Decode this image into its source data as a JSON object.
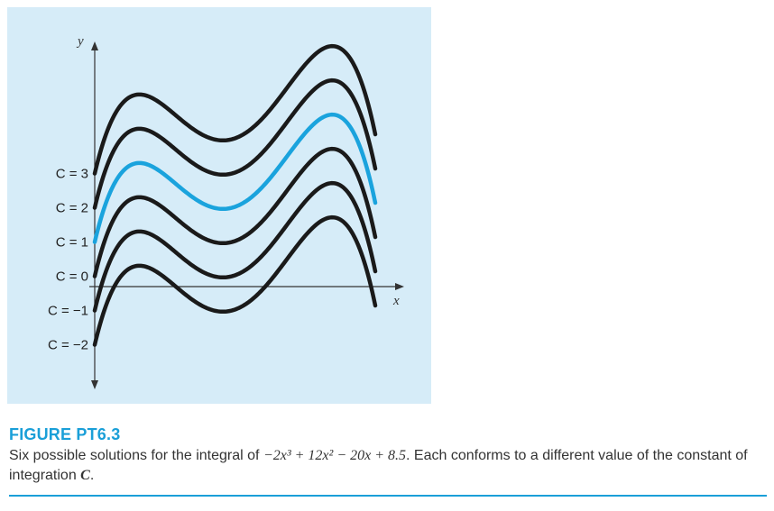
{
  "figure": {
    "title": "FIGURE PT6.3",
    "caption_pre": "Six possible solutions for the integral of ",
    "caption_expr": "−2x³ + 12x² − 20x + 8.5",
    "caption_mid": ". Each conforms to a different value of the constant of integration ",
    "caption_var": "C",
    "caption_end": "."
  },
  "chart_data": {
    "type": "line",
    "title": "",
    "xlabel": "x",
    "ylabel": "y",
    "function": "-0.5x^4 + 4x^3 - 10x^2 + 8.5x + C",
    "xlim": [
      0,
      4.1
    ],
    "series": [
      {
        "label": "C = 3",
        "C": 3,
        "highlighted": false
      },
      {
        "label": "C = 2",
        "C": 2,
        "highlighted": false
      },
      {
        "label": "C = 1",
        "C": 1,
        "highlighted": true
      },
      {
        "label": "C = 0",
        "C": 0,
        "highlighted": false
      },
      {
        "label": "C = −1",
        "C": -1,
        "highlighted": false
      },
      {
        "label": "C = −2",
        "C": -2,
        "highlighted": false
      }
    ],
    "colors": {
      "default": "#1a1a1a",
      "highlight": "#1aa3dd",
      "background": "#d6ecf8"
    }
  }
}
